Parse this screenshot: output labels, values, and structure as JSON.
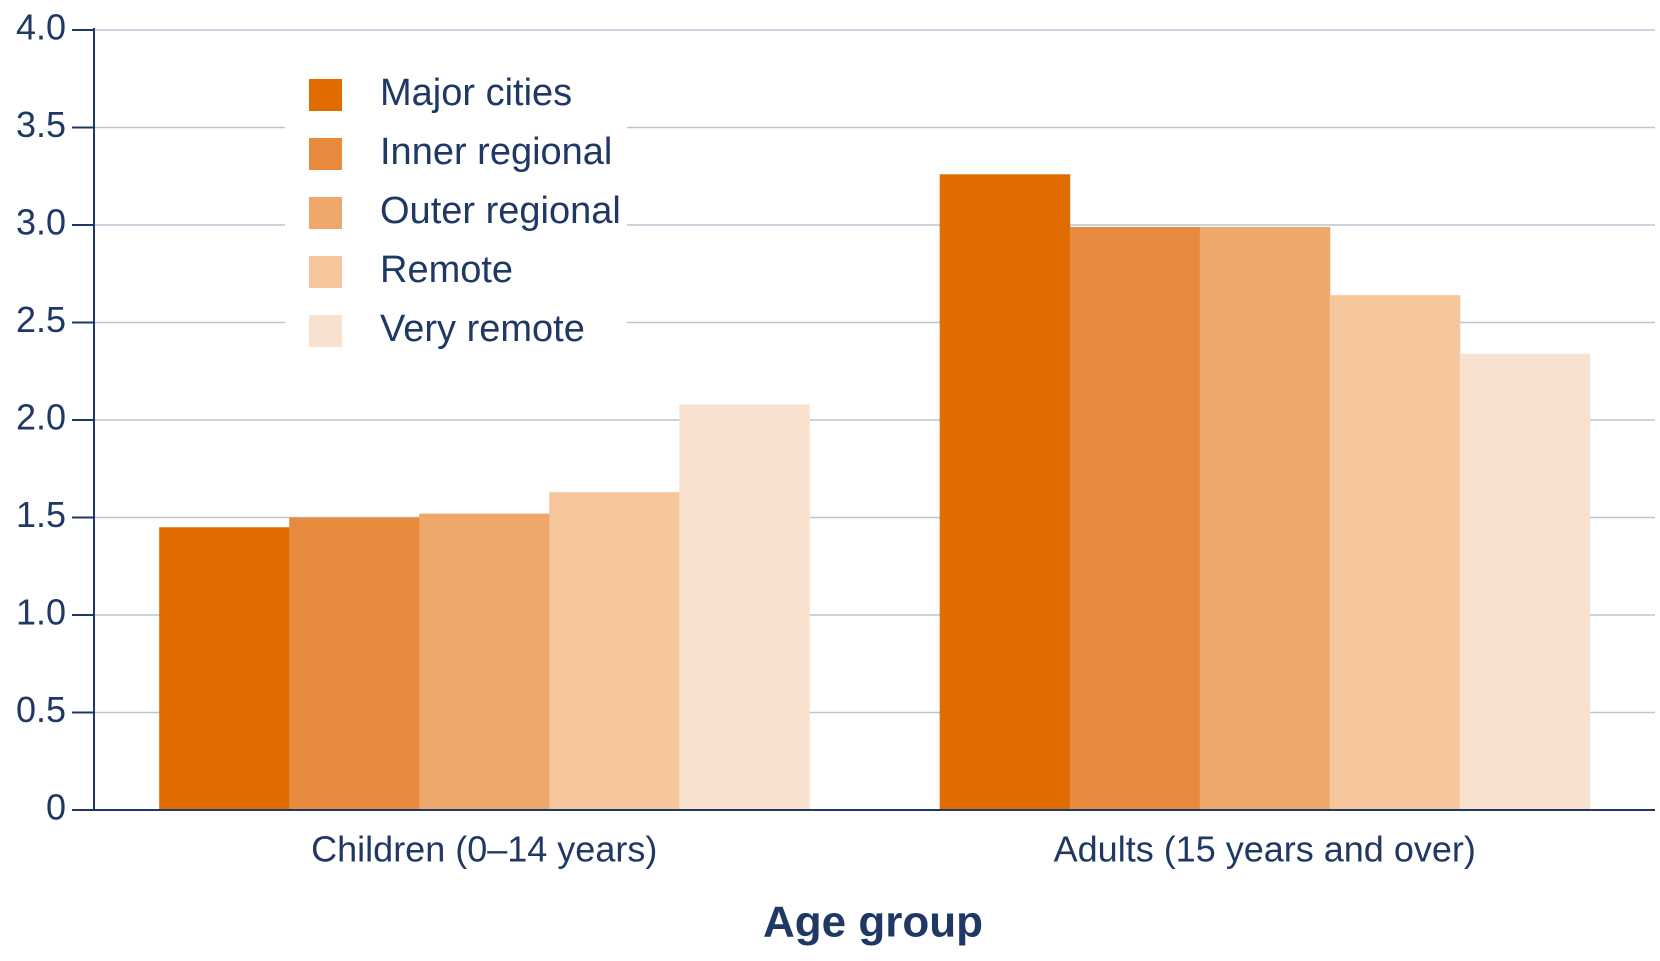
{
  "chart_data": {
    "type": "bar",
    "x_label": "Age group",
    "categories": [
      "Children (0–14 years)",
      "Adults (15 years and over)"
    ],
    "series": [
      {
        "name": "Major cities",
        "color": "#e06c00",
        "values": [
          1.45,
          3.26
        ]
      },
      {
        "name": "Inner regional",
        "color": "#e98b3e",
        "values": [
          1.5,
          2.99
        ]
      },
      {
        "name": "Outer regional",
        "color": "#efa86c",
        "values": [
          1.52,
          2.99
        ]
      },
      {
        "name": "Remote",
        "color": "#f5c59c",
        "values": [
          1.63,
          2.64
        ]
      },
      {
        "name": "Very remote",
        "color": "#f9e1cf",
        "values": [
          2.08,
          2.34
        ]
      }
    ],
    "ylim": [
      0,
      4
    ],
    "yticks": [
      0,
      0.5,
      {
        "value": 1,
        "label": "1.0"
      },
      1.5,
      {
        "value": 2,
        "label": "2.0"
      },
      2.5,
      {
        "value": 3,
        "label": "3.0"
      },
      3.5,
      {
        "value": 4,
        "label": "4.0"
      }
    ],
    "grid": true,
    "legend": "top-left"
  }
}
